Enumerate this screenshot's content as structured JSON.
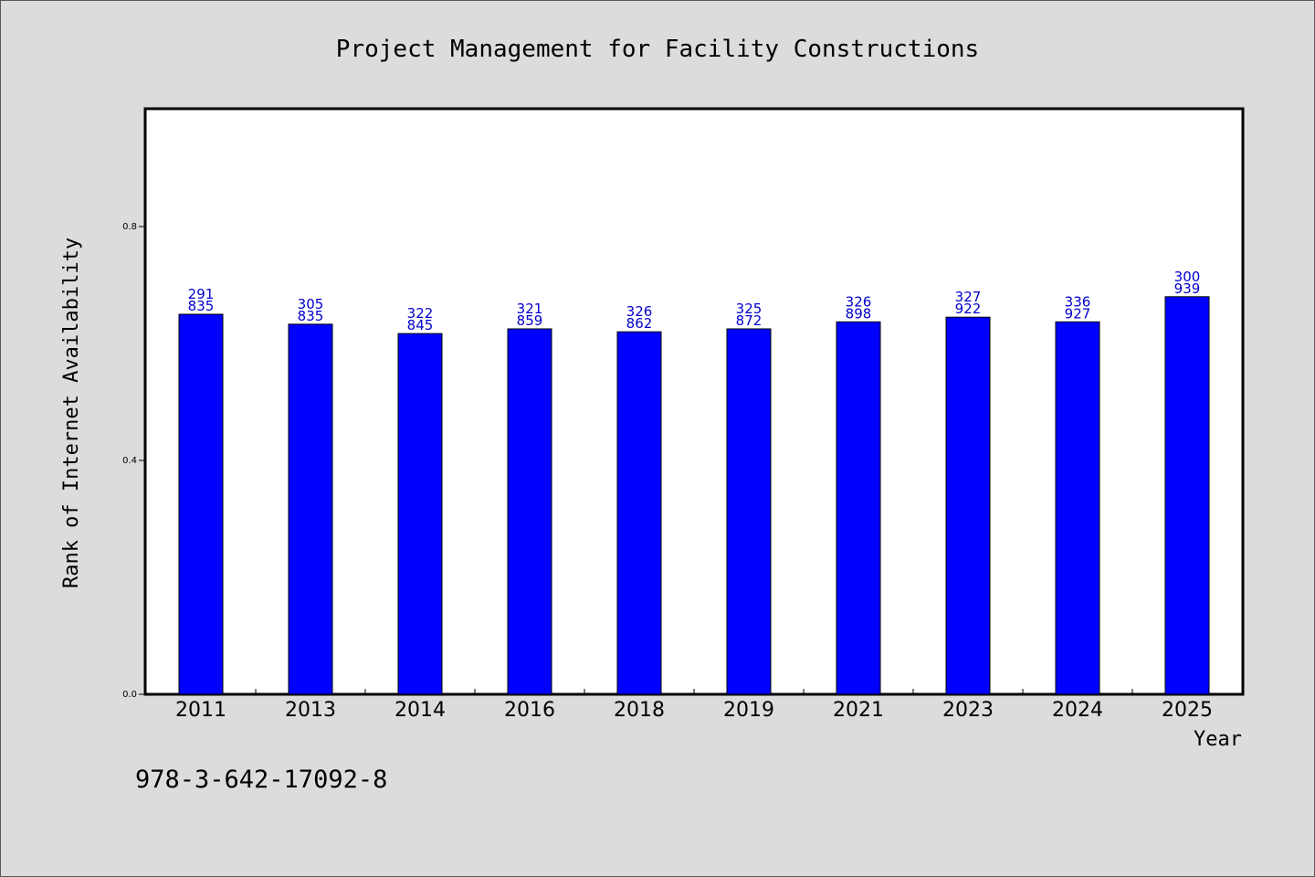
{
  "chart_data": {
    "type": "bar",
    "title": "Project Management for Facility Constructions",
    "xlabel": "Year",
    "ylabel": "Rank of Internet Availability",
    "categories": [
      "2011",
      "2013",
      "2014",
      "2016",
      "2018",
      "2019",
      "2021",
      "2023",
      "2024",
      "2025"
    ],
    "values": [
      0.65,
      0.633,
      0.617,
      0.625,
      0.62,
      0.625,
      0.637,
      0.645,
      0.637,
      0.68
    ],
    "data_labels": [
      [
        "291",
        "835"
      ],
      [
        "305",
        "835"
      ],
      [
        "322",
        "845"
      ],
      [
        "321",
        "859"
      ],
      [
        "326",
        "862"
      ],
      [
        "325",
        "872"
      ],
      [
        "326",
        "898"
      ],
      [
        "327",
        "922"
      ],
      [
        "336",
        "927"
      ],
      [
        "300",
        "939"
      ]
    ],
    "ylim": [
      0,
      1.0
    ],
    "yticks": [
      0.0,
      0.4,
      0.8
    ],
    "ytick_labels": [
      "0.0",
      "0.4",
      "0.8"
    ],
    "grid": false,
    "bar_color": "#0000ff",
    "label_color": "#0000cc"
  },
  "footer": {
    "isbn": "978-3-642-17092-8"
  }
}
